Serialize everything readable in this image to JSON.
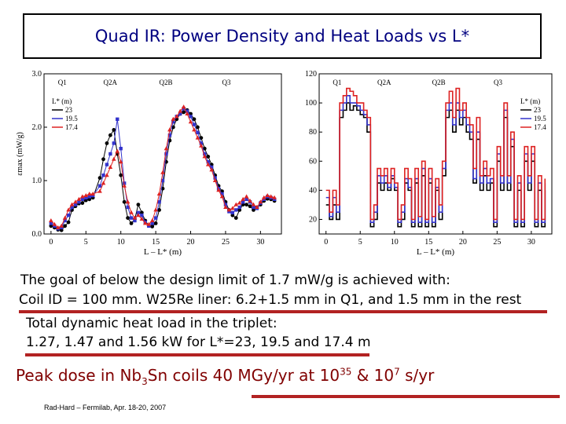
{
  "slide": {
    "title": "Quad IR: Power Density and Heat Loads vs L*",
    "line1": "The goal of below the design limit of 1.7 mW/g is achieved with:",
    "line2": "Coil ID = 100 mm. W25Re liner: 6.2+1.5 mm in Q1, and 1.5 mm in the rest",
    "line3": "Total dynamic heat load in the triplet:",
    "line4": "1.27, 1.47 and 1.56 kW for L*=23, 19.5 and 17.4 m",
    "dose": {
      "pre": "Peak dose in Nb",
      "sub": "3",
      "mid": "Sn coils 40 MGy/yr at 10",
      "sup1": "35",
      "mid2": " & 10",
      "sup2": "7",
      "post": " s/yr"
    },
    "footer": "Rad-Hard – Fermilab, Apr. 18-20, 2007"
  },
  "chart_data": [
    {
      "type": "line",
      "xlabel": "L – L* (m)",
      "ylabel": "εmax (mW/g)",
      "xlim": [
        -1,
        33
      ],
      "ylim": [
        0,
        3
      ],
      "xticks": [
        "0",
        "5",
        "10",
        "15",
        "20",
        "25",
        "30"
      ],
      "yticks": [
        "0.0",
        "1.0",
        "2.0",
        "3.0"
      ],
      "section_labels": [
        "Q1",
        "Q2A",
        "Q2B",
        "Q3"
      ],
      "legend": {
        "title": "L* (m)",
        "position": "top-left",
        "entries": [
          "23",
          "19.5",
          "17.4"
        ]
      },
      "colors": [
        "#000000",
        "#3333cc",
        "#dd2222"
      ],
      "series": [
        {
          "name": "23",
          "x": [
            0,
            0.5,
            1,
            1.5,
            2,
            2.5,
            3,
            3.5,
            4,
            4.5,
            5,
            5.5,
            6,
            7,
            7.5,
            8,
            8.5,
            9,
            9.5,
            10,
            10.5,
            11,
            11.5,
            12,
            12.5,
            13,
            13.5,
            14,
            14.5,
            15,
            15.5,
            16,
            16.5,
            17,
            17.5,
            18,
            18.5,
            19,
            19.5,
            20,
            20.5,
            21,
            21.5,
            22,
            22.5,
            23,
            23.5,
            24,
            24.5,
            25,
            25.5,
            26,
            26.5,
            27,
            27.5,
            28,
            28.5,
            29,
            29.5,
            30,
            30.5,
            31,
            31.5,
            32
          ],
          "y": [
            0.15,
            0.12,
            0.08,
            0.07,
            0.15,
            0.22,
            0.45,
            0.52,
            0.57,
            0.58,
            0.63,
            0.65,
            0.68,
            1.05,
            1.4,
            1.7,
            1.85,
            1.95,
            1.5,
            1.1,
            0.6,
            0.3,
            0.2,
            0.28,
            0.55,
            0.4,
            0.25,
            0.16,
            0.14,
            0.2,
            0.45,
            0.85,
            1.35,
            1.75,
            2.0,
            2.15,
            2.25,
            2.28,
            2.32,
            2.25,
            2.15,
            2.0,
            1.8,
            1.6,
            1.45,
            1.3,
            1.1,
            0.9,
            0.8,
            0.6,
            0.45,
            0.35,
            0.3,
            0.45,
            0.55,
            0.55,
            0.52,
            0.45,
            0.5,
            0.55,
            0.62,
            0.66,
            0.65,
            0.62
          ]
        },
        {
          "name": "19.5",
          "x": [
            0,
            0.5,
            1,
            1.5,
            2,
            2.5,
            3,
            3.5,
            4,
            4.5,
            5,
            5.5,
            6,
            7,
            7.5,
            8,
            8.5,
            9,
            9.5,
            10,
            10.5,
            11,
            11.5,
            12,
            12.5,
            13,
            13.5,
            14,
            14.5,
            15,
            15.5,
            16,
            16.5,
            17,
            17.5,
            18,
            18.5,
            19,
            19.5,
            20,
            20.5,
            21,
            21.5,
            22,
            22.5,
            23,
            23.5,
            24,
            24.5,
            25,
            25.5,
            26,
            26.5,
            27,
            27.5,
            28,
            28.5,
            29,
            29.5,
            30,
            30.5,
            31,
            31.5,
            32
          ],
          "y": [
            0.2,
            0.15,
            0.1,
            0.12,
            0.25,
            0.35,
            0.5,
            0.55,
            0.6,
            0.65,
            0.68,
            0.7,
            0.72,
            0.9,
            1.1,
            1.3,
            1.5,
            1.7,
            2.15,
            1.6,
            0.95,
            0.5,
            0.3,
            0.25,
            0.4,
            0.35,
            0.22,
            0.15,
            0.2,
            0.3,
            0.6,
            1.0,
            1.5,
            1.85,
            2.1,
            2.2,
            2.25,
            2.35,
            2.3,
            2.2,
            2.05,
            1.9,
            1.7,
            1.5,
            1.35,
            1.25,
            1.05,
            0.85,
            0.75,
            0.55,
            0.42,
            0.4,
            0.45,
            0.5,
            0.6,
            0.65,
            0.6,
            0.5,
            0.48,
            0.58,
            0.65,
            0.7,
            0.68,
            0.65
          ]
        },
        {
          "name": "17.4",
          "x": [
            0,
            0.5,
            1,
            1.5,
            2,
            2.5,
            3,
            3.5,
            4,
            4.5,
            5,
            5.5,
            6,
            7,
            7.5,
            8,
            8.5,
            9,
            9.5,
            10,
            10.5,
            11,
            11.5,
            12,
            12.5,
            13,
            13.5,
            14,
            14.5,
            15,
            15.5,
            16,
            16.5,
            17,
            17.5,
            18,
            18.5,
            19,
            19.5,
            20,
            20.5,
            21,
            21.5,
            22,
            22.5,
            23,
            23.5,
            24,
            24.5,
            25,
            25.5,
            26,
            26.5,
            27,
            27.5,
            28,
            28.5,
            29,
            29.5,
            30,
            30.5,
            31,
            31.5,
            32
          ],
          "y": [
            0.25,
            0.18,
            0.12,
            0.15,
            0.3,
            0.45,
            0.55,
            0.6,
            0.65,
            0.7,
            0.72,
            0.75,
            0.75,
            0.8,
            0.95,
            1.1,
            1.25,
            1.4,
            1.55,
            1.35,
            0.9,
            0.6,
            0.4,
            0.3,
            0.35,
            0.28,
            0.2,
            0.18,
            0.25,
            0.45,
            0.75,
            1.15,
            1.6,
            1.95,
            2.15,
            2.2,
            2.3,
            2.38,
            2.25,
            2.1,
            1.95,
            1.8,
            1.65,
            1.45,
            1.3,
            1.2,
            1.0,
            0.82,
            0.7,
            0.5,
            0.45,
            0.48,
            0.55,
            0.58,
            0.65,
            0.7,
            0.62,
            0.55,
            0.5,
            0.6,
            0.68,
            0.72,
            0.7,
            0.68
          ]
        }
      ]
    },
    {
      "type": "line",
      "xlabel": "L – L* (m)",
      "ylabel": "",
      "xlim": [
        -1,
        33
      ],
      "ylim": [
        10,
        120
      ],
      "xticks": [
        "0",
        "5",
        "10",
        "15",
        "20",
        "25",
        "30"
      ],
      "yticks": [
        "20",
        "40",
        "60",
        "80",
        "100",
        "120"
      ],
      "section_labels": [
        "Q1",
        "Q2A",
        "Q2B",
        "Q3"
      ],
      "legend": {
        "title": "L* (m)",
        "position": "top-right",
        "entries": [
          "23",
          "19.5",
          "17.4"
        ]
      },
      "colors": [
        "#000000",
        "#3333cc",
        "#dd2222"
      ],
      "series": [
        {
          "name": "23",
          "x": [
            0,
            0.5,
            1,
            1.5,
            2,
            2.5,
            3,
            3.5,
            4,
            4.5,
            5,
            5.5,
            6,
            6.5,
            7,
            7.5,
            8,
            8.5,
            9,
            9.5,
            10,
            10.5,
            11,
            11.5,
            12,
            12.5,
            13,
            13.5,
            14,
            14.5,
            15,
            15.5,
            16,
            16.5,
            17,
            17.5,
            18,
            18.5,
            19,
            19.5,
            20,
            20.5,
            21,
            21.5,
            22,
            22.5,
            23,
            23.5,
            24,
            24.5,
            25,
            25.5,
            26,
            26.5,
            27,
            27.5,
            28,
            28.5,
            29,
            29.5,
            30,
            30.5,
            31,
            31.5,
            32
          ],
          "y": [
            30,
            20,
            30,
            20,
            90,
            95,
            100,
            95,
            98,
            95,
            92,
            90,
            80,
            15,
            20,
            45,
            40,
            45,
            40,
            48,
            40,
            15,
            20,
            45,
            40,
            15,
            45,
            15,
            50,
            15,
            45,
            15,
            40,
            20,
            50,
            90,
            95,
            80,
            95,
            85,
            90,
            80,
            75,
            45,
            75,
            40,
            50,
            40,
            45,
            15,
            60,
            40,
            90,
            40,
            70,
            15,
            40,
            15,
            60,
            40,
            60,
            15,
            40,
            15,
            40
          ]
        },
        {
          "name": "19.5",
          "x": [
            0,
            0.5,
            1,
            1.5,
            2,
            2.5,
            3,
            3.5,
            4,
            4.5,
            5,
            5.5,
            6,
            6.5,
            7,
            7.5,
            8,
            8.5,
            9,
            9.5,
            10,
            10.5,
            11,
            11.5,
            12,
            12.5,
            13,
            13.5,
            14,
            14.5,
            15,
            15.5,
            16,
            16.5,
            17,
            17.5,
            18,
            18.5,
            19,
            19.5,
            20,
            20.5,
            21,
            21.5,
            22,
            22.5,
            23,
            23.5,
            24,
            24.5,
            25,
            25.5,
            26,
            26.5,
            27,
            27.5,
            28,
            28.5,
            29,
            29.5,
            30,
            30.5,
            31,
            31.5,
            32
          ],
          "y": [
            35,
            22,
            35,
            25,
            95,
            100,
            105,
            100,
            100,
            98,
            95,
            92,
            85,
            18,
            25,
            50,
            45,
            50,
            42,
            50,
            42,
            18,
            25,
            48,
            42,
            18,
            48,
            18,
            55,
            18,
            48,
            18,
            42,
            25,
            55,
            95,
            100,
            85,
            100,
            90,
            95,
            85,
            80,
            48,
            80,
            45,
            55,
            45,
            48,
            18,
            65,
            45,
            95,
            45,
            75,
            18,
            45,
            18,
            65,
            45,
            65,
            18,
            45,
            18,
            45
          ]
        },
        {
          "name": "17.4",
          "x": [
            0,
            0.5,
            1,
            1.5,
            2,
            2.5,
            3,
            3.5,
            4,
            4.5,
            5,
            5.5,
            6,
            6.5,
            7,
            7.5,
            8,
            8.5,
            9,
            9.5,
            10,
            10.5,
            11,
            11.5,
            12,
            12.5,
            13,
            13.5,
            14,
            14.5,
            15,
            15.5,
            16,
            16.5,
            17,
            17.5,
            18,
            18.5,
            19,
            19.5,
            20,
            20.5,
            21,
            21.5,
            22,
            22.5,
            23,
            23.5,
            24,
            24.5,
            25,
            25.5,
            26,
            26.5,
            27,
            27.5,
            28,
            28.5,
            29,
            29.5,
            30,
            30.5,
            31,
            31.5,
            32
          ],
          "y": [
            40,
            25,
            40,
            30,
            100,
            105,
            110,
            108,
            105,
            100,
            100,
            95,
            90,
            20,
            30,
            55,
            50,
            55,
            45,
            55,
            45,
            20,
            30,
            55,
            48,
            20,
            55,
            22,
            60,
            20,
            55,
            22,
            48,
            30,
            60,
            100,
            108,
            90,
            110,
            95,
            100,
            90,
            85,
            55,
            90,
            50,
            60,
            50,
            55,
            20,
            70,
            50,
            100,
            50,
            80,
            20,
            50,
            20,
            70,
            50,
            70,
            20,
            50,
            20,
            48
          ]
        }
      ]
    }
  ]
}
